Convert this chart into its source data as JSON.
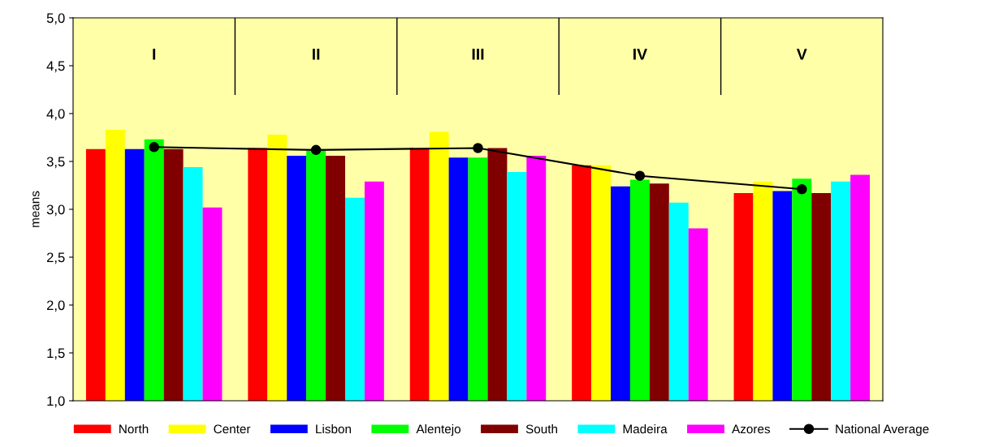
{
  "chart_data": {
    "type": "bar",
    "ylabel": "means",
    "categories": [
      "I",
      "II",
      "III",
      "IV",
      "V"
    ],
    "ylim": [
      1.0,
      5.0
    ],
    "yticks": [
      {
        "value": 1.0,
        "label": "1,0"
      },
      {
        "value": 1.5,
        "label": "1,5"
      },
      {
        "value": 2.0,
        "label": "2,0"
      },
      {
        "value": 2.5,
        "label": "2,5"
      },
      {
        "value": 3.0,
        "label": "3,0"
      },
      {
        "value": 3.5,
        "label": "3,5"
      },
      {
        "value": 4.0,
        "label": "4,0"
      },
      {
        "value": 4.5,
        "label": "4,5"
      },
      {
        "value": 5.0,
        "label": "5,0"
      }
    ],
    "grid": false,
    "legend": "bottom",
    "series": [
      {
        "name": "North",
        "color": "#ff0000",
        "values": [
          3.63,
          3.64,
          3.64,
          3.46,
          3.17
        ]
      },
      {
        "name": "Center",
        "color": "#ffff00",
        "values": [
          3.83,
          3.78,
          3.81,
          3.46,
          3.29
        ]
      },
      {
        "name": "Lisbon",
        "color": "#0000ff",
        "values": [
          3.63,
          3.56,
          3.54,
          3.24,
          3.19
        ]
      },
      {
        "name": "Alentejo",
        "color": "#00ff00",
        "values": [
          3.73,
          3.61,
          3.54,
          3.31,
          3.32
        ]
      },
      {
        "name": "South",
        "color": "#800000",
        "values": [
          3.63,
          3.56,
          3.64,
          3.27,
          3.17
        ]
      },
      {
        "name": "Madeira",
        "color": "#00ffff",
        "values": [
          3.44,
          3.12,
          3.39,
          3.07,
          3.29
        ]
      },
      {
        "name": "Azores",
        "color": "#ff00ff",
        "values": [
          3.02,
          3.29,
          3.56,
          2.8,
          3.36
        ]
      },
      {
        "name": "National Average",
        "type": "line",
        "color": "#000000",
        "marker": "circle",
        "line_style": "solid",
        "values": [
          3.65,
          3.62,
          3.64,
          3.35,
          3.21
        ]
      }
    ]
  }
}
